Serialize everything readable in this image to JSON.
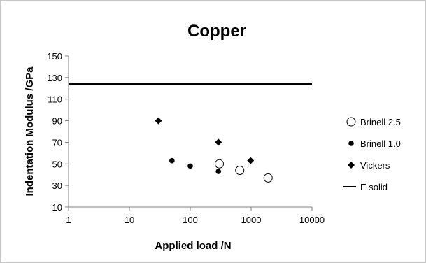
{
  "chart_data": {
    "type": "scatter",
    "title": "Copper",
    "xlabel": "Applied load /N",
    "ylabel": "Indentation Modulus /GPa",
    "xscale": "log",
    "xlim": [
      1,
      10000
    ],
    "ylim": [
      10,
      150
    ],
    "x_ticks": [
      "1",
      "10",
      "100",
      "1000",
      "10000"
    ],
    "y_ticks": [
      "10",
      "30",
      "50",
      "70",
      "90",
      "110",
      "130",
      "150"
    ],
    "grid": false,
    "legend_position": "right",
    "series": [
      {
        "name": "Brinell 2.5",
        "marker": "open-circle",
        "color": "#000000",
        "points": [
          {
            "x": 300,
            "y": 50
          },
          {
            "x": 650,
            "y": 44
          },
          {
            "x": 1900,
            "y": 37
          }
        ]
      },
      {
        "name": "Brinell 1.0",
        "marker": "filled-circle",
        "color": "#000000",
        "points": [
          {
            "x": 50,
            "y": 53
          },
          {
            "x": 100,
            "y": 48
          },
          {
            "x": 290,
            "y": 43
          }
        ]
      },
      {
        "name": "Vickers",
        "marker": "diamond",
        "color": "#000000",
        "points": [
          {
            "x": 30,
            "y": 90
          },
          {
            "x": 290,
            "y": 70
          },
          {
            "x": 980,
            "y": 53
          }
        ]
      },
      {
        "name": "E solid",
        "marker": "line",
        "color": "#000000",
        "value": 124
      }
    ]
  }
}
